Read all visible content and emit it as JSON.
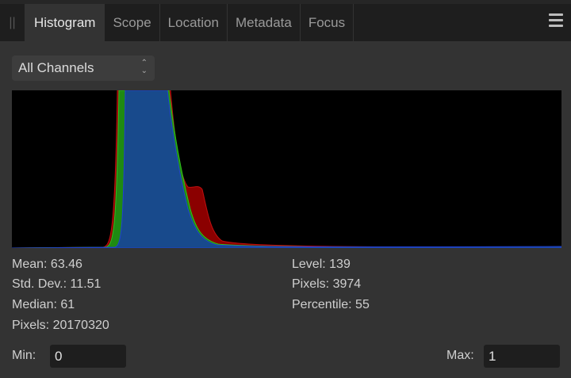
{
  "tabs": [
    {
      "label": "Histogram",
      "active": true
    },
    {
      "label": "Scope"
    },
    {
      "label": "Location"
    },
    {
      "label": "Metadata"
    },
    {
      "label": "Focus"
    }
  ],
  "icons": {
    "grip": "grip-icon",
    "menu": "hamburger-menu-icon",
    "select": "up-down-chevron-icon"
  },
  "channel_select": {
    "value": "All Channels"
  },
  "colors": {
    "red": "#8b0000",
    "green": "#1f8a12",
    "blue": "#184a8c"
  },
  "stats_left": [
    "Mean: 63.46",
    "Std. Dev.: 11.51",
    "Median: 61",
    "Pixels: 20170320"
  ],
  "stats_right": [
    "Level: 139",
    "Pixels: 3974",
    "Percentile: 55"
  ],
  "min": {
    "label": "Min:",
    "value": "0"
  },
  "max": {
    "label": "Max:",
    "value": "1"
  }
}
